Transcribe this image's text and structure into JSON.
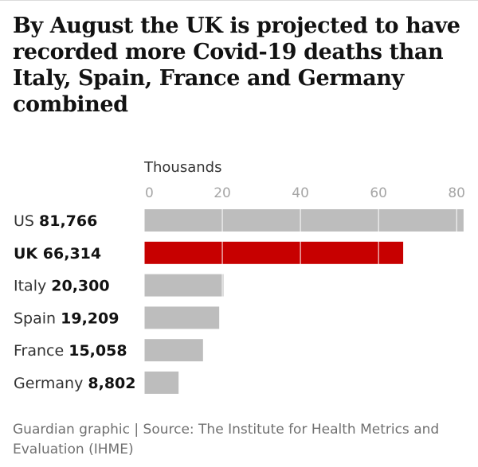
{
  "chart_data": {
    "type": "bar",
    "orientation": "horizontal",
    "title": "By August the UK is projected to have recorded more Covid-19 deaths than Italy, Spain, France and Germany combined",
    "unit_label": "Thousands",
    "categories": [
      "US",
      "UK",
      "Italy",
      "Spain",
      "France",
      "Germany"
    ],
    "value_labels": [
      "81,766",
      "66,314",
      "20,300",
      "19,209",
      "15,058",
      "8,802"
    ],
    "values": [
      81.766,
      66.314,
      20.3,
      19.209,
      15.058,
      8.802
    ],
    "highlight": "UK",
    "xlim": [
      0,
      82
    ],
    "xticks": [
      0,
      20,
      40,
      60,
      80
    ],
    "tick_labels": [
      "0",
      "20",
      "40",
      "60",
      "80"
    ],
    "grid": true,
    "colors": {
      "bar": "#bdbdbd",
      "highlight": "#c70000",
      "grid": "#ffffff"
    }
  },
  "source": "Guardian graphic | Source: The Institute for Health Metrics and Evaluation (IHME)"
}
